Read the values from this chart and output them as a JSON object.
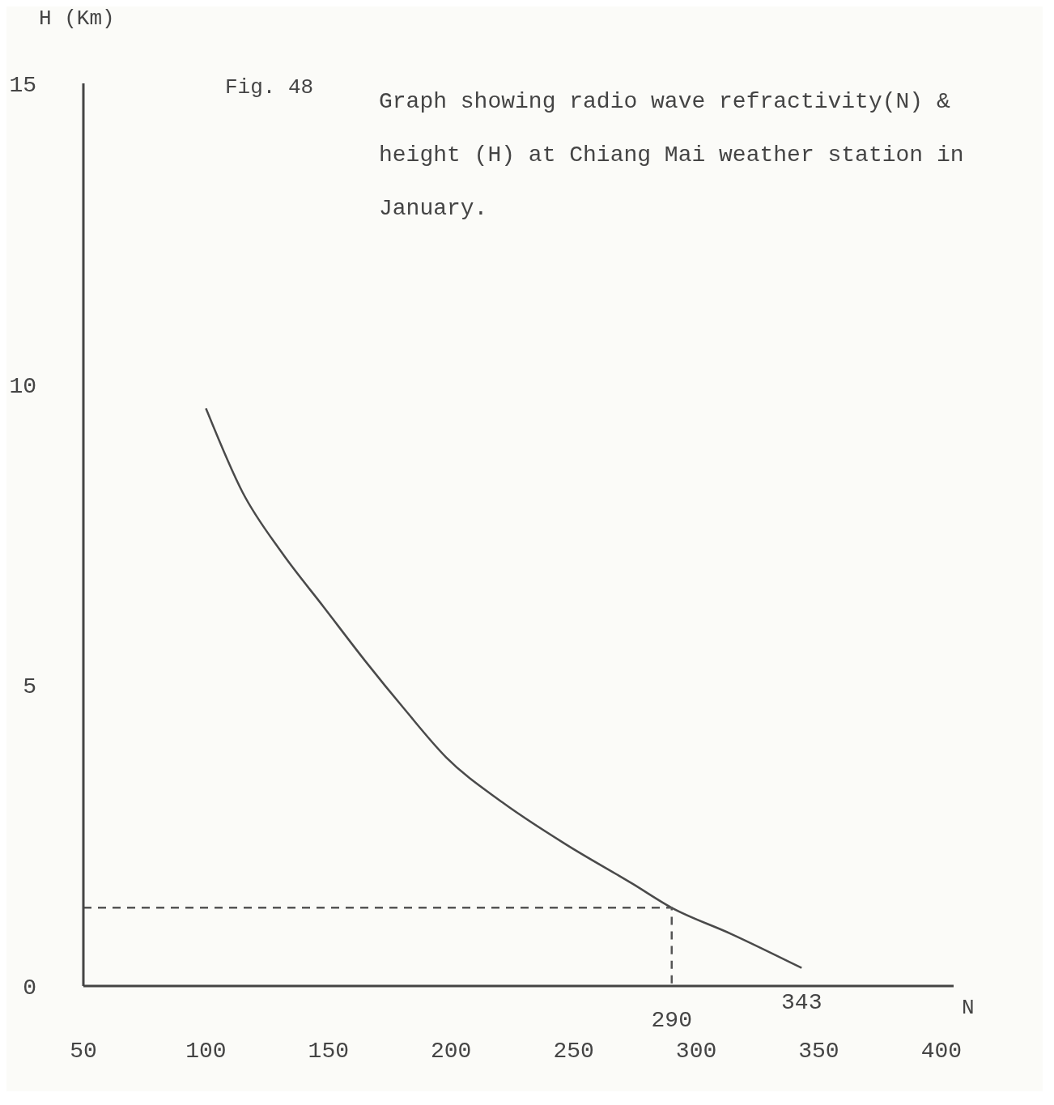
{
  "chart_data": {
    "type": "line",
    "title": "Fig. 48",
    "subtitle": "Graph showing radio wave refractivity(N) & height (H) at Chiang Mai weather station in January.",
    "xlabel": "N",
    "ylabel": "H (Km)",
    "series": [
      {
        "type": "line",
        "color": "#4a4a4a",
        "line_style": "solid",
        "x": [
          100,
          115,
          131,
          148,
          165,
          181,
          198,
          221,
          247,
          274,
          290,
          314,
          343
        ],
        "values": [
          9.6,
          8.2,
          7.2,
          6.3,
          5.4,
          4.6,
          3.8,
          3.05,
          2.35,
          1.7,
          1.3,
          0.87,
          0.3
        ]
      },
      {
        "type": "line",
        "color": "#555555",
        "line_style": "dashed",
        "x": [
          50,
          290,
          290
        ],
        "values": [
          1.3,
          1.3,
          0
        ]
      }
    ],
    "annotations": [
      {
        "text": "290",
        "x": 290,
        "y": 0
      },
      {
        "text": "343",
        "x": 343,
        "y": 0.3
      }
    ],
    "xlim": [
      50,
      405
    ],
    "xticks": [
      50,
      100,
      150,
      200,
      250,
      300,
      350,
      400
    ],
    "ylim": [
      0,
      15
    ],
    "yticks": [
      0,
      5,
      10,
      15
    ],
    "grid": false,
    "marker": "none"
  }
}
